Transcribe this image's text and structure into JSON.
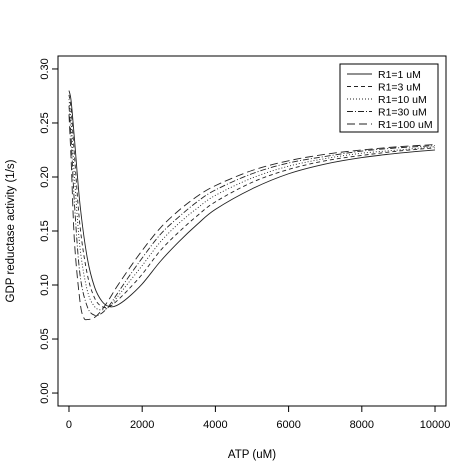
{
  "chart_data": {
    "type": "line",
    "title": "",
    "xlabel": "ATP (uM)",
    "ylabel": "GDP reductase activity (1/s)",
    "xlim": [
      -300,
      10300
    ],
    "ylim": [
      -0.012,
      0.312
    ],
    "xticks": [
      0,
      2000,
      4000,
      6000,
      8000,
      10000
    ],
    "xtick_labels": [
      "0",
      "2000",
      "4000",
      "6000",
      "8000",
      "10000"
    ],
    "yticks": [
      0.0,
      0.05,
      0.1,
      0.15,
      0.2,
      0.25,
      0.3
    ],
    "ytick_labels": [
      "0.00",
      "0.05",
      "0.10",
      "0.15",
      "0.20",
      "0.25",
      "0.30"
    ],
    "grid": false,
    "legend_position": "top-right",
    "series": [
      {
        "name": "R1=1 uM",
        "dash": "solid",
        "x": [
          0,
          60,
          150,
          300,
          500,
          700,
          900,
          1100,
          1300,
          1600,
          2000,
          2500,
          3000,
          3500,
          4000,
          5000,
          6000,
          7000,
          8000,
          9000,
          10000
        ],
        "y": [
          0.28,
          0.27,
          0.235,
          0.175,
          0.125,
          0.098,
          0.085,
          0.08,
          0.081,
          0.088,
          0.101,
          0.122,
          0.14,
          0.156,
          0.17,
          0.189,
          0.203,
          0.212,
          0.218,
          0.222,
          0.225
        ]
      },
      {
        "name": "R1=3 uM",
        "dash": "4,3",
        "x": [
          0,
          60,
          150,
          300,
          500,
          700,
          900,
          1100,
          1300,
          1600,
          2000,
          2500,
          3000,
          3500,
          4000,
          5000,
          6000,
          7000,
          8000,
          9000,
          10000
        ],
        "y": [
          0.276,
          0.262,
          0.22,
          0.155,
          0.11,
          0.088,
          0.08,
          0.08,
          0.085,
          0.095,
          0.11,
          0.132,
          0.149,
          0.164,
          0.177,
          0.195,
          0.207,
          0.215,
          0.22,
          0.224,
          0.227
        ]
      },
      {
        "name": "R1=10 uM",
        "dash": "1,2",
        "x": [
          0,
          60,
          150,
          300,
          500,
          700,
          900,
          1100,
          1300,
          1600,
          2000,
          2500,
          3000,
          3500,
          4000,
          5000,
          6000,
          7000,
          8000,
          9000,
          10000
        ],
        "y": [
          0.272,
          0.25,
          0.2,
          0.135,
          0.095,
          0.08,
          0.077,
          0.08,
          0.088,
          0.101,
          0.118,
          0.14,
          0.157,
          0.171,
          0.183,
          0.199,
          0.21,
          0.217,
          0.222,
          0.225,
          0.228
        ]
      },
      {
        "name": "R1=30 uM",
        "dash": "6,2,1,2",
        "x": [
          0,
          60,
          150,
          300,
          500,
          700,
          900,
          1100,
          1300,
          1600,
          2000,
          2500,
          3000,
          3500,
          4000,
          5000,
          6000,
          7000,
          8000,
          9000,
          10000
        ],
        "y": [
          0.266,
          0.235,
          0.175,
          0.11,
          0.08,
          0.072,
          0.074,
          0.081,
          0.091,
          0.106,
          0.125,
          0.147,
          0.163,
          0.177,
          0.188,
          0.203,
          0.213,
          0.219,
          0.224,
          0.227,
          0.229
        ]
      },
      {
        "name": "R1=100 uM",
        "dash": "8,4",
        "x": [
          0,
          60,
          150,
          300,
          400,
          500,
          700,
          900,
          1100,
          1300,
          1600,
          2000,
          2500,
          3000,
          3500,
          4000,
          5000,
          6000,
          7000,
          8000,
          9000,
          10000
        ],
        "y": [
          0.258,
          0.215,
          0.14,
          0.085,
          0.07,
          0.068,
          0.07,
          0.077,
          0.087,
          0.098,
          0.113,
          0.132,
          0.153,
          0.169,
          0.182,
          0.192,
          0.206,
          0.215,
          0.221,
          0.225,
          0.228,
          0.23
        ]
      }
    ]
  }
}
